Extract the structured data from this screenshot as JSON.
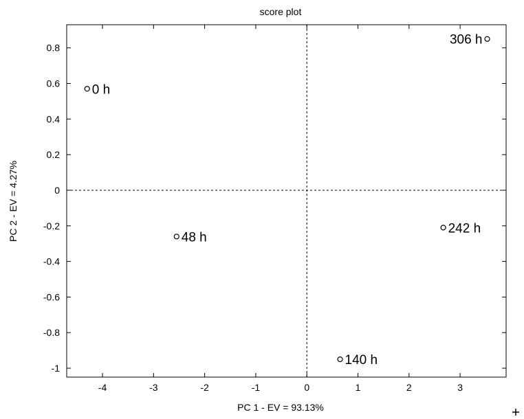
{
  "chart_data": {
    "type": "scatter",
    "title": "score plot",
    "xlabel": "PC 1 - EV = 93.13%",
    "ylabel": "PC 2 - EV = 4.27%",
    "xlim": [
      -4.7,
      3.9
    ],
    "ylim": [
      -1.05,
      0.93
    ],
    "xticks": [
      -4,
      -3,
      -2,
      -1,
      0,
      1,
      2,
      3
    ],
    "yticks": [
      -1,
      -0.8,
      -0.6,
      -0.4,
      -0.2,
      0,
      0.2,
      0.4,
      0.6,
      0.8
    ],
    "grid": false,
    "reference_lines": {
      "x": 0,
      "y": 0,
      "style": "dashed"
    },
    "points": [
      {
        "label": "0 h",
        "x": -4.3,
        "y": 0.57,
        "label_side": "right"
      },
      {
        "label": "48 h",
        "x": -2.55,
        "y": -0.26,
        "label_side": "right"
      },
      {
        "label": "140 h",
        "x": 0.65,
        "y": -0.95,
        "label_side": "right"
      },
      {
        "label": "242 h",
        "x": 2.67,
        "y": -0.21,
        "label_side": "right"
      },
      {
        "label": "306 h",
        "x": 3.53,
        "y": 0.85,
        "label_side": "left"
      }
    ]
  }
}
